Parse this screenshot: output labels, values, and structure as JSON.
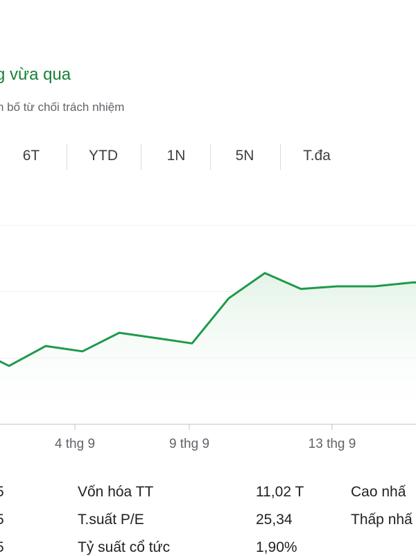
{
  "header": {
    "title": "g vừa qua",
    "disclaimer": "n bố từ chối trách nhiệm"
  },
  "tabs": [
    {
      "label": "6T"
    },
    {
      "label": "YTD"
    },
    {
      "label": "1N"
    },
    {
      "label": "5N"
    },
    {
      "label": "T.đa"
    }
  ],
  "chart_data": {
    "type": "area",
    "x_tick_labels": [
      "4 thg 9",
      "9 thg 9",
      "13 thg 9"
    ],
    "series": [
      {
        "values": [
          0.0,
          -0.12,
          0.18,
          0.1,
          0.38,
          0.3,
          0.22,
          0.9,
          1.28,
          1.04,
          1.08,
          1.08,
          1.14,
          1.1
        ]
      }
    ],
    "ylim": [
      -1.0,
      2.0
    ],
    "grid": true,
    "colors": {
      "line": "#1e9a4b",
      "fill_top": "#e3f3e7",
      "grid": "#eeeeee",
      "axis": "#bdc1c6"
    }
  },
  "stats": [
    {
      "left_value": "5",
      "label": "Vốn hóa TT",
      "value": "11,02 T",
      "right_label": "Cao nhấ"
    },
    {
      "left_value": "5",
      "label": "T.suất P/E",
      "value": "25,34",
      "right_label": "Thấp nhấ"
    },
    {
      "left_value": "5",
      "label": "Tỷ suất cổ tức",
      "value": "1,90%",
      "right_label": ""
    }
  ]
}
